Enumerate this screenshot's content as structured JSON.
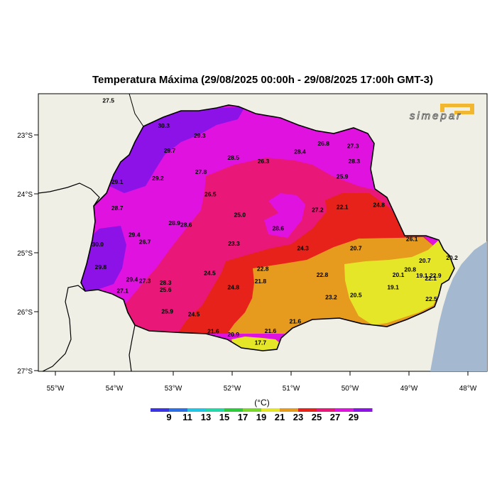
{
  "title": "Temperatura Máxima (29/08/2025 00:00h - 29/08/2025 17:00h GMT-3)",
  "logo_text": "simepar",
  "colors": {
    "land_bg": "#f0efe6",
    "ocean": "#a4b9cf",
    "c17_19": "#e6e628",
    "c21_23": "#e69a1e",
    "c23_25": "#e6221a",
    "c25_27": "#e81778",
    "c27_29": "#e012e0",
    "c29_plus": "#8c12e8",
    "logo": "#f2b731"
  },
  "axes": {
    "x_ticks": [
      "55°W",
      "54°W",
      "53°W",
      "52°W",
      "51°W",
      "50°W",
      "49°W",
      "48°W"
    ],
    "y_ticks": [
      "23°S",
      "24°S",
      "25°S",
      "26°S",
      "27°S"
    ]
  },
  "legend": {
    "unit": "(°C)",
    "labels": [
      "9",
      "11",
      "13",
      "15",
      "17",
      "19",
      "21",
      "23",
      "25",
      "27",
      "29"
    ],
    "colors": [
      "#3a34e6",
      "#2d6fe6",
      "#21c6e6",
      "#22d8a8",
      "#2ccb3c",
      "#7ad82c",
      "#e6e628",
      "#e69a1e",
      "#e6221a",
      "#e81778",
      "#e012e0",
      "#8c12e8"
    ]
  },
  "stations": [
    {
      "t": "27.5",
      "lon": -54.1,
      "lat": -22.45
    },
    {
      "t": "30.3",
      "lon": -53.16,
      "lat": -22.88
    },
    {
      "t": "29.3",
      "lon": -52.55,
      "lat": -23.05
    },
    {
      "t": "29.7",
      "lon": -53.06,
      "lat": -23.3
    },
    {
      "t": "28.5",
      "lon": -51.98,
      "lat": -23.42
    },
    {
      "t": "28.4",
      "lon": -50.85,
      "lat": -23.32
    },
    {
      "t": "26.8",
      "lon": -50.45,
      "lat": -23.18
    },
    {
      "t": "27.3",
      "lon": -49.95,
      "lat": -23.22
    },
    {
      "t": "26.3",
      "lon": -51.47,
      "lat": -23.48
    },
    {
      "t": "28.3",
      "lon": -49.93,
      "lat": -23.48
    },
    {
      "t": "27.8",
      "lon": -52.53,
      "lat": -23.66
    },
    {
      "t": "29.2",
      "lon": -53.26,
      "lat": -23.77
    },
    {
      "t": "29.1",
      "lon": -53.95,
      "lat": -23.83
    },
    {
      "t": "25.9",
      "lon": -50.13,
      "lat": -23.74
    },
    {
      "t": "26.5",
      "lon": -52.37,
      "lat": -24.04
    },
    {
      "t": "28.7",
      "lon": -53.95,
      "lat": -24.28
    },
    {
      "t": "25.0",
      "lon": -51.87,
      "lat": -24.39
    },
    {
      "t": "27.2",
      "lon": -50.55,
      "lat": -24.31
    },
    {
      "t": "22.1",
      "lon": -50.13,
      "lat": -24.26
    },
    {
      "t": "24.8",
      "lon": -49.51,
      "lat": -24.22
    },
    {
      "t": "28.9",
      "lon": -52.98,
      "lat": -24.53
    },
    {
      "t": "28.6",
      "lon": -52.78,
      "lat": -24.56
    },
    {
      "t": "28.6",
      "lon": -51.22,
      "lat": -24.62
    },
    {
      "t": "29.4",
      "lon": -53.66,
      "lat": -24.73
    },
    {
      "t": "26.7",
      "lon": -53.48,
      "lat": -24.85
    },
    {
      "t": "26.1",
      "lon": -48.95,
      "lat": -24.8
    },
    {
      "t": "30.0",
      "lon": -54.28,
      "lat": -24.89
    },
    {
      "t": "23.3",
      "lon": -51.97,
      "lat": -24.88
    },
    {
      "t": "24.3",
      "lon": -50.8,
      "lat": -24.96
    },
    {
      "t": "20.7",
      "lon": -49.9,
      "lat": -24.96
    },
    {
      "t": "20.7",
      "lon": -48.73,
      "lat": -25.17
    },
    {
      "t": "20.2",
      "lon": -48.27,
      "lat": -25.12
    },
    {
      "t": "29.8",
      "lon": -54.23,
      "lat": -25.28
    },
    {
      "t": "22.8",
      "lon": -51.48,
      "lat": -25.31
    },
    {
      "t": "24.5",
      "lon": -52.38,
      "lat": -25.38
    },
    {
      "t": "22.8",
      "lon": -50.47,
      "lat": -25.41
    },
    {
      "t": "20.8",
      "lon": -48.98,
      "lat": -25.32
    },
    {
      "t": "20.1",
      "lon": -49.18,
      "lat": -25.41
    },
    {
      "t": "19.1",
      "lon": -48.78,
      "lat": -25.42
    },
    {
      "t": "22.9",
      "lon": -48.55,
      "lat": -25.42
    },
    {
      "t": "22.1",
      "lon": -48.63,
      "lat": -25.47
    },
    {
      "t": "29.4",
      "lon": -53.7,
      "lat": -25.49
    },
    {
      "t": "27.3",
      "lon": -53.48,
      "lat": -25.51
    },
    {
      "t": "28.3",
      "lon": -53.13,
      "lat": -25.54
    },
    {
      "t": "21.8",
      "lon": -51.52,
      "lat": -25.52
    },
    {
      "t": "27.1",
      "lon": -53.86,
      "lat": -25.68
    },
    {
      "t": "25.6",
      "lon": -53.13,
      "lat": -25.66
    },
    {
      "t": "24.8",
      "lon": -51.98,
      "lat": -25.62
    },
    {
      "t": "19.1",
      "lon": -49.27,
      "lat": -25.62
    },
    {
      "t": "20.5",
      "lon": -49.9,
      "lat": -25.75
    },
    {
      "t": "23.2",
      "lon": -50.32,
      "lat": -25.79
    },
    {
      "t": "22.5",
      "lon": -48.62,
      "lat": -25.82
    },
    {
      "t": "25.9",
      "lon": -53.1,
      "lat": -26.03
    },
    {
      "t": "24.5",
      "lon": -52.65,
      "lat": -26.08
    },
    {
      "t": "21.6",
      "lon": -50.93,
      "lat": -26.2
    },
    {
      "t": "21.6",
      "lon": -52.32,
      "lat": -26.37
    },
    {
      "t": "20.9",
      "lon": -51.98,
      "lat": -26.42
    },
    {
      "t": "21.6",
      "lon": -51.35,
      "lat": -26.36
    },
    {
      "t": "17.7",
      "lon": -51.52,
      "lat": -26.56
    }
  ]
}
